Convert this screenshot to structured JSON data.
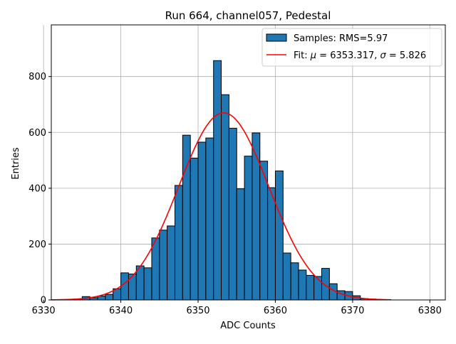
{
  "chart_data": {
    "type": "bar",
    "title": "Run 664, channel057, Pedestal",
    "xlabel": "ADC Counts",
    "ylabel": "Entries",
    "xlim": [
      6331,
      6382
    ],
    "ylim": [
      0,
      985
    ],
    "xticks": [
      6330,
      6340,
      6350,
      6360,
      6370,
      6380
    ],
    "yticks": [
      0,
      200,
      400,
      600,
      800
    ],
    "grid": true,
    "legend_position": "top-right",
    "legend": [
      {
        "type": "patch",
        "label": "Samples: RMS=5.97",
        "color": "#1f77b4"
      },
      {
        "type": "line",
        "label_prefix": "Fit: ",
        "mu_symbol": "μ",
        "mu_text": " = 6353.317, ",
        "sigma_symbol": "σ",
        "sigma_text": " = 5.826",
        "color": "#ff0000"
      }
    ],
    "bin_width": 1,
    "bins": [
      {
        "left": 6334,
        "count": 2
      },
      {
        "left": 6335,
        "count": 12
      },
      {
        "left": 6336,
        "count": 8
      },
      {
        "left": 6337,
        "count": 14
      },
      {
        "left": 6338,
        "count": 20
      },
      {
        "left": 6339,
        "count": 40
      },
      {
        "left": 6340,
        "count": 97
      },
      {
        "left": 6341,
        "count": 93
      },
      {
        "left": 6342,
        "count": 122
      },
      {
        "left": 6343,
        "count": 115
      },
      {
        "left": 6344,
        "count": 222
      },
      {
        "left": 6345,
        "count": 250
      },
      {
        "left": 6346,
        "count": 265
      },
      {
        "left": 6347,
        "count": 410
      },
      {
        "left": 6348,
        "count": 590
      },
      {
        "left": 6349,
        "count": 508
      },
      {
        "left": 6350,
        "count": 565
      },
      {
        "left": 6351,
        "count": 580
      },
      {
        "left": 6352,
        "count": 857
      },
      {
        "left": 6353,
        "count": 735
      },
      {
        "left": 6354,
        "count": 615
      },
      {
        "left": 6355,
        "count": 398
      },
      {
        "left": 6356,
        "count": 515
      },
      {
        "left": 6357,
        "count": 598
      },
      {
        "left": 6358,
        "count": 497
      },
      {
        "left": 6359,
        "count": 402
      },
      {
        "left": 6360,
        "count": 462
      },
      {
        "left": 6361,
        "count": 168
      },
      {
        "left": 6362,
        "count": 133
      },
      {
        "left": 6363,
        "count": 107
      },
      {
        "left": 6364,
        "count": 88
      },
      {
        "left": 6365,
        "count": 84
      },
      {
        "left": 6366,
        "count": 113
      },
      {
        "left": 6367,
        "count": 58
      },
      {
        "left": 6368,
        "count": 33
      },
      {
        "left": 6369,
        "count": 30
      },
      {
        "left": 6370,
        "count": 15
      },
      {
        "left": 6371,
        "count": 5
      },
      {
        "left": 6372,
        "count": 3
      }
    ],
    "fit": {
      "model": "gaussian",
      "mu": 6353.317,
      "sigma": 5.826,
      "amplitude": 670,
      "x_range": [
        6331,
        6375
      ]
    }
  }
}
